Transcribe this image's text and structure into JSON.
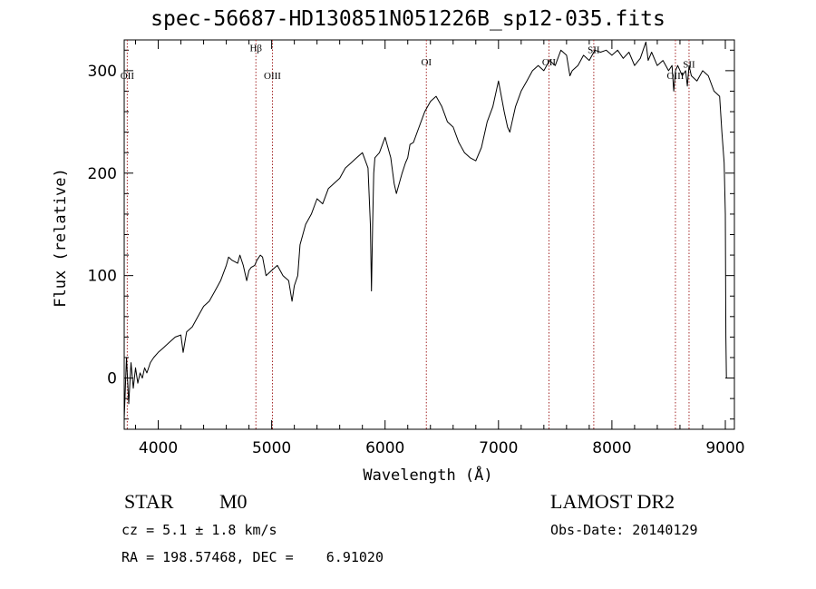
{
  "figure": {
    "title": "spec-56687-HD130851N051226B_sp12-035.fits",
    "object_class": "STAR",
    "subclass": "M0",
    "survey": "LAMOST DR2",
    "cz": "cz = 5.1 ± 1.8 km/s",
    "obs_date": "Obs-Date: 20140129",
    "radec": "RA = 198.57468, DEC =    6.91020"
  },
  "chart_data": {
    "type": "line",
    "title": "spec-56687-HD130851N051226B_sp12-035.fits",
    "xlabel": "Wavelength (Å)",
    "ylabel": "Flux (relative)",
    "xlim": [
      3700,
      9080
    ],
    "ylim": [
      -50,
      330
    ],
    "xticks": [
      4000,
      5000,
      6000,
      7000,
      8000,
      9000
    ],
    "yticks": [
      0,
      100,
      200,
      300
    ],
    "grid": false,
    "legend": "none",
    "line_color": "#000000",
    "marker_color": "#a52a2a",
    "lines": [
      {
        "label": "OII",
        "x": 3727,
        "label_y": 292
      },
      {
        "label": "Hβ",
        "x": 4861,
        "label_y": 319
      },
      {
        "label": "OIII",
        "x": 5007,
        "label_y": 292
      },
      {
        "label": "OI",
        "x": 6364,
        "label_y": 305
      },
      {
        "label": "OII",
        "x": 7445,
        "label_y": 305
      },
      {
        "label": "SII",
        "x": 7840,
        "label_y": 317
      },
      {
        "label": "OIII",
        "x": 8560,
        "label_y": 292
      },
      {
        "label": "SII",
        "x": 8680,
        "label_y": 303
      }
    ],
    "series": [
      {
        "x": [
          3700,
          3720,
          3740,
          3760,
          3780,
          3800,
          3820,
          3840,
          3860,
          3880,
          3900,
          3930,
          3960,
          4000,
          4050,
          4100,
          4150,
          4200,
          4220,
          4250,
          4300,
          4350,
          4400,
          4450,
          4500,
          4550,
          4600,
          4620,
          4650,
          4700,
          4720,
          4750,
          4780,
          4800,
          4820,
          4850,
          4870,
          4900,
          4920,
          4950,
          5000,
          5050,
          5100,
          5150,
          5180,
          5200,
          5230,
          5250,
          5300,
          5350,
          5400,
          5450,
          5500,
          5550,
          5600,
          5650,
          5700,
          5750,
          5800,
          5850,
          5870,
          5880,
          5890,
          5900,
          5910,
          5950,
          6000,
          6050,
          6080,
          6100,
          6150,
          6180,
          6200,
          6220,
          6250,
          6300,
          6350,
          6400,
          6450,
          6500,
          6550,
          6600,
          6650,
          6700,
          6750,
          6800,
          6850,
          6880,
          6900,
          6950,
          7000,
          7050,
          7080,
          7100,
          7120,
          7150,
          7200,
          7250,
          7300,
          7350,
          7400,
          7450,
          7500,
          7550,
          7600,
          7630,
          7650,
          7700,
          7750,
          7800,
          7850,
          7900,
          7950,
          8000,
          8050,
          8100,
          8150,
          8200,
          8250,
          8300,
          8320,
          8350,
          8400,
          8450,
          8500,
          8530,
          8545,
          8560,
          8580,
          8620,
          8650,
          8665,
          8680,
          8700,
          8750,
          8800,
          8850,
          8900,
          8950,
          8970,
          8990,
          9000,
          9005,
          9010
        ],
        "values": [
          -40,
          20,
          -25,
          15,
          -10,
          10,
          -5,
          5,
          0,
          10,
          5,
          15,
          20,
          25,
          30,
          35,
          40,
          42,
          25,
          45,
          50,
          60,
          70,
          75,
          85,
          95,
          110,
          118,
          115,
          112,
          120,
          110,
          95,
          105,
          108,
          110,
          115,
          120,
          118,
          100,
          105,
          110,
          100,
          95,
          75,
          90,
          100,
          130,
          150,
          160,
          175,
          170,
          185,
          190,
          195,
          205,
          210,
          215,
          220,
          205,
          150,
          85,
          150,
          200,
          215,
          220,
          235,
          215,
          190,
          180,
          200,
          210,
          215,
          228,
          230,
          245,
          260,
          270,
          275,
          265,
          250,
          245,
          230,
          220,
          215,
          212,
          225,
          240,
          250,
          265,
          290,
          260,
          245,
          240,
          250,
          265,
          280,
          290,
          300,
          305,
          300,
          310,
          305,
          320,
          315,
          295,
          300,
          305,
          315,
          310,
          320,
          318,
          320,
          315,
          320,
          312,
          318,
          305,
          312,
          328,
          310,
          318,
          305,
          310,
          300,
          305,
          280,
          300,
          305,
          295,
          300,
          285,
          305,
          295,
          290,
          300,
          295,
          280,
          275,
          240,
          210,
          160,
          40,
          0
        ]
      }
    ]
  }
}
